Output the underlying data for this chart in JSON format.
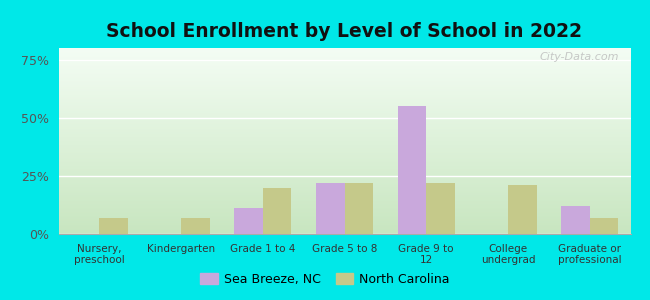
{
  "title": "School Enrollment by Level of School in 2022",
  "categories": [
    "Nursery,\npreschool",
    "Kindergarten",
    "Grade 1 to 4",
    "Grade 5 to 8",
    "Grade 9 to\n12",
    "College\nundergrad",
    "Graduate or\nprofessional"
  ],
  "sea_breeze": [
    0,
    0,
    11,
    22,
    55,
    0,
    12
  ],
  "north_carolina": [
    7,
    7,
    20,
    22,
    22,
    21,
    7
  ],
  "sea_breeze_color": "#c9a8dc",
  "north_carolina_color": "#c5c98a",
  "background_color": "#00e8e8",
  "title_fontsize": 13.5,
  "tick_label_fontsize": 7.5,
  "legend_fontsize": 9,
  "ylim": [
    0,
    80
  ],
  "yticks": [
    0,
    25,
    50,
    75
  ],
  "ytick_labels": [
    "0%",
    "25%",
    "50%",
    "75%"
  ],
  "bar_width": 0.35,
  "watermark": "City-Data.com"
}
